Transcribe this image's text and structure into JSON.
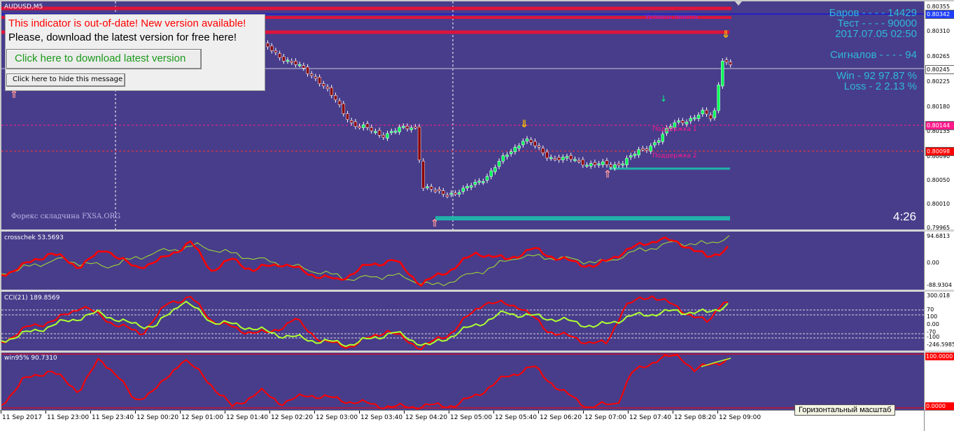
{
  "main": {
    "symbol": "AUDUSD,M5",
    "watermark": "Форекс складчина FXSA.ORG",
    "timer": "4:26",
    "pivot_label": "Уровень пивота",
    "support1_label": "Поддержка 1",
    "support2_label": "Поддержка 2",
    "price_ticks": [
      "0.80355",
      "0.80310",
      "0.80265",
      "0.80225",
      "0.80180",
      "0.80135",
      "0.80090",
      "0.80050",
      "0.80010",
      "0.79965"
    ],
    "price_tags": [
      {
        "text": "0.80342",
        "bg": "#1f3fff",
        "fg": "#ffffff"
      },
      {
        "text": "0.80245",
        "bg": "#ffffff",
        "fg": "#000000"
      },
      {
        "text": "0.80144",
        "bg": "#ff1a8c",
        "fg": "#ffffff"
      },
      {
        "text": "0.80098",
        "bg": "#ff0000",
        "fg": "#ffffff"
      }
    ]
  },
  "stats": {
    "bars": "Баров - - - - 14429",
    "test": "Тест - - - - 90000",
    "date": "2017.07.05 02:50",
    "signals": "Сигналов - - - -  94",
    "win": "Win - 92   97.87 %",
    "loss": "Loss - 2   2.13 %"
  },
  "alert": {
    "title": "This indicator is out-of-date! New version available!",
    "message": "Please, download the latest version for free here!",
    "download_label": "Click here to download latest version",
    "hide_label": "Click here to hide this message"
  },
  "crosschek": {
    "label": "crosschek 53.5693",
    "ticks": [
      "94.6813",
      "0.00",
      "-88.9304"
    ]
  },
  "cci": {
    "label": "CCI(21) 189.8569",
    "ticks": [
      "300.018",
      "70",
      "100",
      "0.00",
      "-70",
      "-100",
      "-246.5985"
    ]
  },
  "win95": {
    "label": "win95% 90.7310",
    "ticks": [
      "100.0000",
      "0.0000"
    ]
  },
  "time_axis": [
    "11 Sep 2017",
    "11 Sep 23:00",
    "11 Sep 23:40",
    "12 Sep 00:20",
    "12 Sep 01:00",
    "12 Sep 01:40",
    "12 Sep 02:20",
    "12 Sep 03:00",
    "12 Sep 03:40",
    "12 Sep 04:20",
    "12 Sep 05:00",
    "12 Sep 05:40",
    "12 Sep 06:20",
    "12 Sep 07:00",
    "12 Sep 07:40",
    "12 Sep 08:20",
    "12 Sep 09:00"
  ],
  "tooltip": "Горизонтальный масштаб",
  "colors": {
    "background": "#483d8b",
    "bull": "#00ff55",
    "bear": "#8b0000",
    "pivot": "#dc143c",
    "support": "#20b2aa",
    "signal_up": "#ff9999",
    "signal_down": "#ffbf00",
    "stats": "#2fb8d8"
  }
}
